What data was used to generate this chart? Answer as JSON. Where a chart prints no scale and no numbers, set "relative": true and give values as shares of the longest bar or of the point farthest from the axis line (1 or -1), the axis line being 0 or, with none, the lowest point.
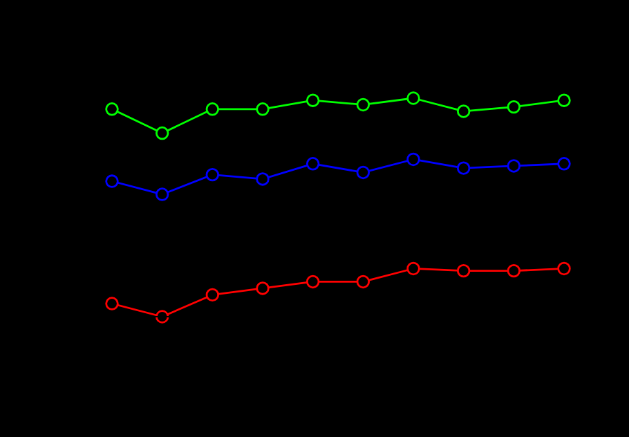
{
  "chart_data": {
    "type": "line",
    "relative": true,
    "marker": "circle",
    "categories": [
      null,
      null,
      null,
      null,
      null,
      null,
      null,
      null,
      null,
      null
    ],
    "series": [
      {
        "color": "#ff0000",
        "values": [
          0.06,
          0,
          0.1,
          0.13,
          0.16,
          0.16,
          0.22,
          0.21,
          0.21,
          0.22
        ]
      },
      {
        "color": "#0000ff",
        "values": [
          0.62,
          0.56,
          0.65,
          0.63,
          0.7,
          0.66,
          0.72,
          0.68,
          0.69,
          0.7
        ]
      },
      {
        "color": "#00ff00",
        "values": [
          0.95,
          0.84,
          0.95,
          0.95,
          0.99,
          0.97,
          1.0,
          0.94,
          0.96,
          0.99
        ]
      }
    ]
  }
}
